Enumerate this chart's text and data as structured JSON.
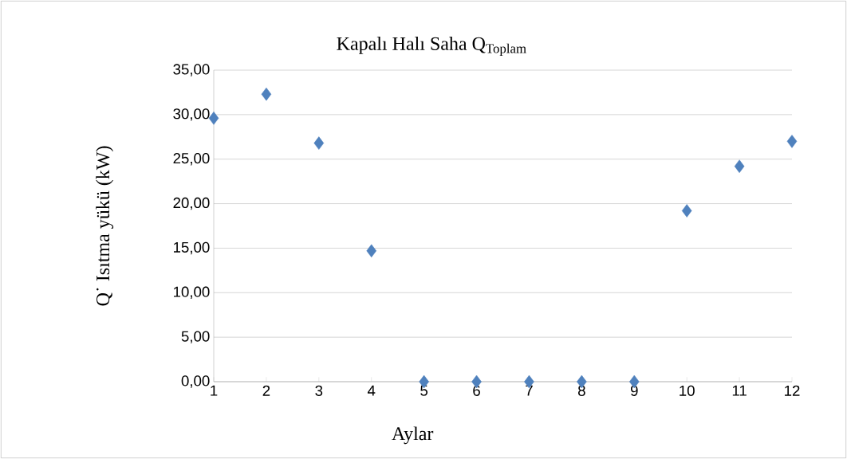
{
  "chart_data": {
    "type": "scatter",
    "title": "Kapalı Halı Saha Q$_{Toplam}$",
    "xlabel": "Aylar",
    "ylabel": "Q˙ Isıtma yükü (kW)",
    "x": [
      1,
      2,
      3,
      4,
      5,
      6,
      7,
      8,
      9,
      10,
      11,
      12
    ],
    "series": [
      {
        "color": "#4f81bd",
        "values": [
          29.6,
          32.3,
          26.8,
          14.7,
          0,
          0,
          0,
          0,
          0,
          19.2,
          24.2,
          27.0
        ]
      }
    ],
    "xlim": [
      1,
      12
    ],
    "xticks": [
      1,
      2,
      3,
      4,
      5,
      6,
      7,
      8,
      9,
      10,
      11,
      12
    ],
    "ylim": [
      0,
      35
    ],
    "yticks": [
      {
        "value": 0,
        "label": "0,00"
      },
      {
        "value": 5,
        "label": "5,00"
      },
      {
        "value": 10,
        "label": "10,00"
      },
      {
        "value": 15,
        "label": "15,00"
      },
      {
        "value": 20,
        "label": "20,00"
      },
      {
        "value": 25,
        "label": "25,00"
      },
      {
        "value": 30,
        "label": "30,00"
      },
      {
        "value": 35,
        "label": "35,00"
      }
    ],
    "grid": "y",
    "marker": "diamond"
  }
}
